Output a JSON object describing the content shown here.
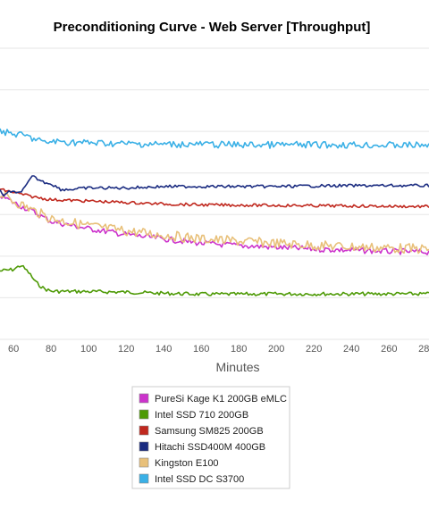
{
  "chart_data": {
    "type": "line",
    "title": "Preconditioning Curve - Web Server [Throughput]",
    "xlabel": "Minutes",
    "ylabel": "",
    "x_ticks": [
      60,
      80,
      100,
      120,
      140,
      160,
      180,
      200,
      220,
      240,
      260,
      280
    ],
    "xlim": [
      52.8,
      281.3
    ],
    "y_gridlines": 7,
    "grid": true,
    "legend_position": "bottom",
    "series": [
      {
        "name": "PureSi Kage K1 200GB eMLC",
        "color": "#cc33cc",
        "points": [
          [
            52.8,
            0.495
          ],
          [
            60,
            0.47
          ],
          [
            70,
            0.44
          ],
          [
            80,
            0.405
          ],
          [
            100,
            0.38
          ],
          [
            120,
            0.36
          ],
          [
            140,
            0.345
          ],
          [
            160,
            0.33
          ],
          [
            180,
            0.322
          ],
          [
            200,
            0.316
          ],
          [
            220,
            0.31
          ],
          [
            240,
            0.306
          ],
          [
            260,
            0.302
          ],
          [
            281,
            0.3
          ]
        ]
      },
      {
        "name": "Intel SSD 710 200GB",
        "color": "#4e9a06",
        "points": [
          [
            52.8,
            0.235
          ],
          [
            60,
            0.24
          ],
          [
            64,
            0.255
          ],
          [
            68,
            0.23
          ],
          [
            72,
            0.195
          ],
          [
            76,
            0.175
          ],
          [
            80,
            0.165
          ],
          [
            100,
            0.164
          ],
          [
            120,
            0.162
          ],
          [
            140,
            0.158
          ],
          [
            160,
            0.155
          ],
          [
            180,
            0.155
          ],
          [
            200,
            0.156
          ],
          [
            220,
            0.156
          ],
          [
            240,
            0.156
          ],
          [
            260,
            0.156
          ],
          [
            281,
            0.156
          ]
        ]
      },
      {
        "name": "Samsung SM825 200GB",
        "color": "#c0281e",
        "points": [
          [
            52.8,
            0.515
          ],
          [
            60,
            0.505
          ],
          [
            70,
            0.49
          ],
          [
            80,
            0.48
          ],
          [
            100,
            0.475
          ],
          [
            120,
            0.47
          ],
          [
            140,
            0.465
          ],
          [
            160,
            0.462
          ],
          [
            180,
            0.461
          ],
          [
            200,
            0.46
          ],
          [
            220,
            0.459
          ],
          [
            240,
            0.458
          ],
          [
            260,
            0.457
          ],
          [
            281,
            0.456
          ]
        ]
      },
      {
        "name": "Hitachi SSD400M 400GB",
        "color": "#1a2b80",
        "points": [
          [
            52.8,
            0.515
          ],
          [
            55,
            0.49
          ],
          [
            58,
            0.51
          ],
          [
            62,
            0.5
          ],
          [
            66,
            0.52
          ],
          [
            70,
            0.56
          ],
          [
            73,
            0.55
          ],
          [
            76,
            0.54
          ],
          [
            80,
            0.535
          ],
          [
            85,
            0.515
          ],
          [
            90,
            0.515
          ],
          [
            100,
            0.52
          ],
          [
            120,
            0.52
          ],
          [
            140,
            0.525
          ],
          [
            160,
            0.525
          ],
          [
            180,
            0.525
          ],
          [
            200,
            0.525
          ],
          [
            220,
            0.527
          ],
          [
            240,
            0.528
          ],
          [
            260,
            0.528
          ],
          [
            281,
            0.528
          ]
        ]
      },
      {
        "name": "Kingston E100",
        "color": "#e8c07a",
        "points": [
          [
            52.8,
            0.5
          ],
          [
            60,
            0.475
          ],
          [
            70,
            0.445
          ],
          [
            80,
            0.415
          ],
          [
            100,
            0.39
          ],
          [
            120,
            0.372
          ],
          [
            140,
            0.358
          ],
          [
            160,
            0.345
          ],
          [
            180,
            0.337
          ],
          [
            200,
            0.33
          ],
          [
            220,
            0.323
          ],
          [
            240,
            0.318
          ],
          [
            260,
            0.314
          ],
          [
            281,
            0.31
          ]
        ]
      },
      {
        "name": "Intel SSD DC S3700",
        "color": "#3ab0e6",
        "points": [
          [
            52.8,
            0.72
          ],
          [
            56,
            0.71
          ],
          [
            60,
            0.705
          ],
          [
            66,
            0.7
          ],
          [
            70,
            0.69
          ],
          [
            74,
            0.685
          ],
          [
            76,
            0.672
          ],
          [
            80,
            0.68
          ],
          [
            100,
            0.675
          ],
          [
            120,
            0.672
          ],
          [
            140,
            0.67
          ],
          [
            160,
            0.67
          ],
          [
            180,
            0.668
          ],
          [
            200,
            0.668
          ],
          [
            220,
            0.668
          ],
          [
            240,
            0.668
          ],
          [
            260,
            0.667
          ],
          [
            281,
            0.667
          ]
        ]
      }
    ]
  }
}
